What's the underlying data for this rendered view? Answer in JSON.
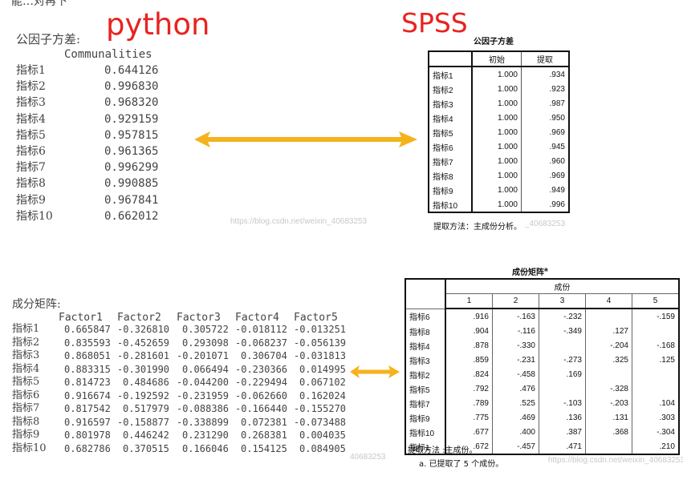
{
  "top_cut_text": "能…对再下",
  "labels": {
    "python": "python",
    "spss": "SPSS"
  },
  "python_comm": {
    "title": "公因子方差:",
    "header": "Communalities",
    "rows": [
      {
        "name": "指标1",
        "value": "0.644126"
      },
      {
        "name": "指标2",
        "value": "0.996830"
      },
      {
        "name": "指标3",
        "value": "0.968320"
      },
      {
        "name": "指标4",
        "value": "0.929159"
      },
      {
        "name": "指标5",
        "value": "0.957815"
      },
      {
        "name": "指标6",
        "value": "0.961365"
      },
      {
        "name": "指标7",
        "value": "0.996299"
      },
      {
        "name": "指标8",
        "value": "0.990885"
      },
      {
        "name": "指标9",
        "value": "0.967841"
      },
      {
        "name": "指标10",
        "value": "0.662012"
      }
    ]
  },
  "spss_comm": {
    "title": "公因子方差",
    "headers": [
      "",
      "初始",
      "提取"
    ],
    "rows": [
      {
        "name": "指标1",
        "initial": "1.000",
        "extract": ".934"
      },
      {
        "name": "指标2",
        "initial": "1.000",
        "extract": ".923"
      },
      {
        "name": "指标3",
        "initial": "1.000",
        "extract": ".987"
      },
      {
        "name": "指标4",
        "initial": "1.000",
        "extract": ".950"
      },
      {
        "name": "指标5",
        "initial": "1.000",
        "extract": ".969"
      },
      {
        "name": "指标6",
        "initial": "1.000",
        "extract": ".945"
      },
      {
        "name": "指标7",
        "initial": "1.000",
        "extract": ".960"
      },
      {
        "name": "指标8",
        "initial": "1.000",
        "extract": ".969"
      },
      {
        "name": "指标9",
        "initial": "1.000",
        "extract": ".949"
      },
      {
        "name": "指标10",
        "initial": "1.000",
        "extract": ".996"
      }
    ],
    "note": "提取方法：主成份分析。"
  },
  "python_matrix": {
    "title": "成分矩阵:",
    "headers": [
      "Factor1",
      "Factor2",
      "Factor3",
      "Factor4",
      "Factor5"
    ],
    "rows": [
      {
        "name": "指标1",
        "values": [
          "0.665847",
          "-0.326810",
          "0.305722",
          "-0.018112",
          "-0.013251"
        ]
      },
      {
        "name": "指标2",
        "values": [
          "0.835593",
          "-0.452659",
          "0.293098",
          "-0.068237",
          "-0.056139"
        ]
      },
      {
        "name": "指标3",
        "values": [
          "0.868051",
          "-0.281601",
          "-0.201071",
          "0.306704",
          "-0.031813"
        ]
      },
      {
        "name": "指标4",
        "values": [
          "0.883315",
          "-0.301990",
          "0.066494",
          "-0.230366",
          "0.014995"
        ]
      },
      {
        "name": "指标5",
        "values": [
          "0.814723",
          "0.484686",
          "-0.044200",
          "-0.229494",
          "0.067102"
        ]
      },
      {
        "name": "指标6",
        "values": [
          "0.916674",
          "-0.192592",
          "-0.231959",
          "-0.062660",
          "0.162024"
        ]
      },
      {
        "name": "指标7",
        "values": [
          "0.817542",
          "0.517979",
          "-0.088386",
          "-0.166440",
          "-0.155270"
        ]
      },
      {
        "name": "指标8",
        "values": [
          "0.916597",
          "-0.158877",
          "-0.338899",
          "0.072381",
          "-0.073488"
        ]
      },
      {
        "name": "指标9",
        "values": [
          "0.801978",
          "0.446242",
          "0.231290",
          "0.268381",
          "0.004035"
        ]
      },
      {
        "name": "指标10",
        "values": [
          "0.682786",
          "0.370515",
          "0.166046",
          "0.154125",
          "0.084905"
        ]
      }
    ]
  },
  "spss_matrix": {
    "title": "成份矩阵",
    "title_sup": "a",
    "group_header": "成份",
    "col_headers": [
      "1",
      "2",
      "3",
      "4",
      "5"
    ],
    "rows": [
      {
        "name": "指标6",
        "values": [
          ".916",
          "-.163",
          "-.232",
          "",
          "-.159"
        ]
      },
      {
        "name": "指标8",
        "values": [
          ".904",
          "-.116",
          "-.349",
          ".127",
          ""
        ]
      },
      {
        "name": "指标4",
        "values": [
          ".878",
          "-.330",
          "",
          "-.204",
          "-.168"
        ]
      },
      {
        "name": "指标3",
        "values": [
          ".859",
          "-.231",
          "-.273",
          ".325",
          ".125"
        ]
      },
      {
        "name": "指标2",
        "values": [
          ".824",
          "-.458",
          ".169",
          "",
          ""
        ]
      },
      {
        "name": "指标5",
        "values": [
          ".792",
          ".476",
          "",
          "-.328",
          ""
        ]
      },
      {
        "name": "指标7",
        "values": [
          ".789",
          ".525",
          "-.103",
          "-.203",
          ".104"
        ]
      },
      {
        "name": "指标9",
        "values": [
          ".775",
          ".469",
          ".136",
          ".131",
          ".303"
        ]
      },
      {
        "name": "指标10",
        "values": [
          ".677",
          ".400",
          ".387",
          ".368",
          "-.304"
        ]
      },
      {
        "name": "指标1",
        "values": [
          ".672",
          "-.457",
          ".471",
          "",
          ".210"
        ]
      }
    ],
    "note1": "提取方法 :主成份。",
    "note2": "a. 已提取了 5 个成份。"
  },
  "watermarks": {
    "w1": "https://blog.csdn.net/weixin_40683253",
    "w2": "https://blog.csdn.net/weixin_40683253",
    "w3": "40683253",
    "w4": "https://blog.csdn.net/weixin_40683253",
    "w5": "_40683253"
  },
  "colors": {
    "label_red": "#e8231f",
    "arrow": "#f5b21b"
  }
}
